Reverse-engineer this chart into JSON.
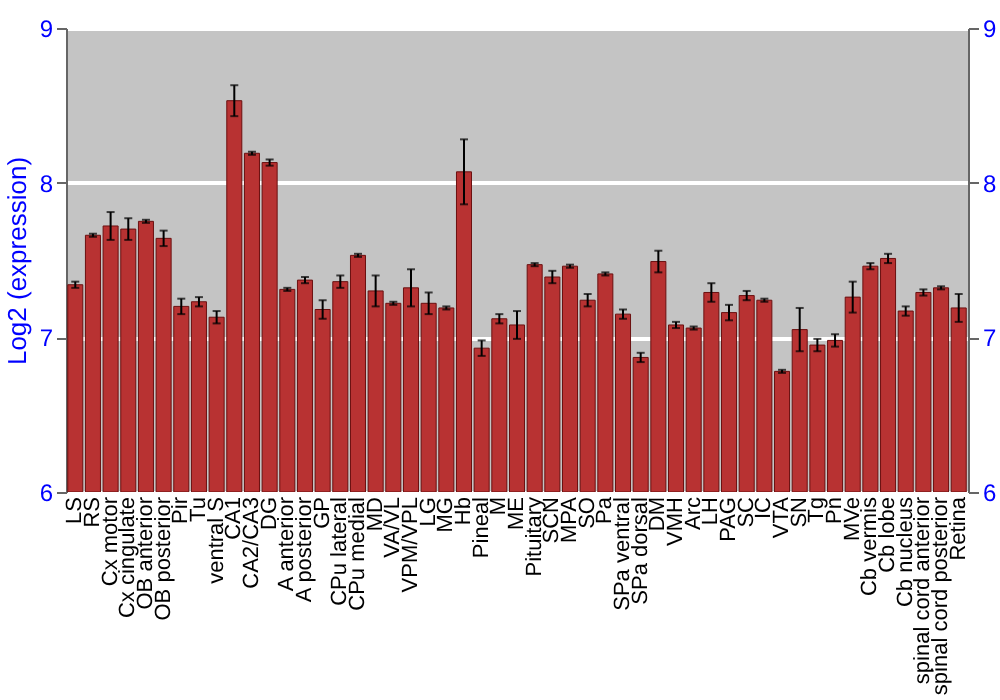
{
  "chart_data": {
    "type": "bar",
    "ylabel": "Log2 (expression)",
    "categories": [
      "LS",
      "RS",
      "Cx motor",
      "Cx cingulate",
      "OB anterior",
      "OB posterior",
      "Pir",
      "Tu",
      "ventral S",
      "CA1",
      "CA2/CA3",
      "DG",
      "A anterior",
      "A posterior",
      "GP",
      "CPu lateral",
      "CPu medial",
      "MD",
      "VA/VL",
      "VPM/VPL",
      "LG",
      "MG",
      "Hb",
      "Pineal",
      "M",
      "ME",
      "Pituitary",
      "SCN",
      "MPA",
      "SO",
      "Pa",
      "SPa ventral",
      "SPa dorsal",
      "DM",
      "VMH",
      "Arc",
      "LH",
      "PAG",
      "SC",
      "IC",
      "VTA",
      "SN",
      "Tg",
      "Pn",
      "MVe",
      "Cb vermis",
      "Cb lobe",
      "Cb nucleus",
      "spinal cord anterior",
      "spinal cord posterior",
      "Retina"
    ],
    "values": [
      7.34,
      7.66,
      7.72,
      7.7,
      7.75,
      7.64,
      7.2,
      7.23,
      7.13,
      8.53,
      8.19,
      8.13,
      7.31,
      7.37,
      7.18,
      7.36,
      7.53,
      7.3,
      7.22,
      7.32,
      7.22,
      7.19,
      8.07,
      6.93,
      7.12,
      7.08,
      7.47,
      7.39,
      7.46,
      7.24,
      7.41,
      7.15,
      6.87,
      7.49,
      7.08,
      7.06,
      7.29,
      7.16,
      7.27,
      7.24,
      6.78,
      7.05,
      6.95,
      6.98,
      7.26,
      7.46,
      7.51,
      7.17,
      7.29,
      7.32,
      7.19
    ],
    "errors": [
      0.02,
      0.01,
      0.09,
      0.07,
      0.01,
      0.05,
      0.05,
      0.03,
      0.04,
      0.1,
      0.01,
      0.02,
      0.01,
      0.02,
      0.06,
      0.04,
      0.01,
      0.1,
      0.01,
      0.12,
      0.07,
      0.01,
      0.21,
      0.05,
      0.03,
      0.09,
      0.01,
      0.04,
      0.01,
      0.04,
      0.01,
      0.03,
      0.03,
      0.07,
      0.02,
      0.01,
      0.06,
      0.05,
      0.03,
      0.01,
      0.01,
      0.14,
      0.04,
      0.04,
      0.1,
      0.02,
      0.03,
      0.03,
      0.02,
      0.01,
      0.09
    ],
    "color": "#b83232",
    "ylim": [
      6,
      9
    ],
    "yticks": [
      6,
      7,
      8,
      9
    ],
    "y2lim": [
      6,
      9
    ],
    "y2ticks": [
      6,
      7,
      8,
      9
    ],
    "grid": "y",
    "legend": false
  }
}
